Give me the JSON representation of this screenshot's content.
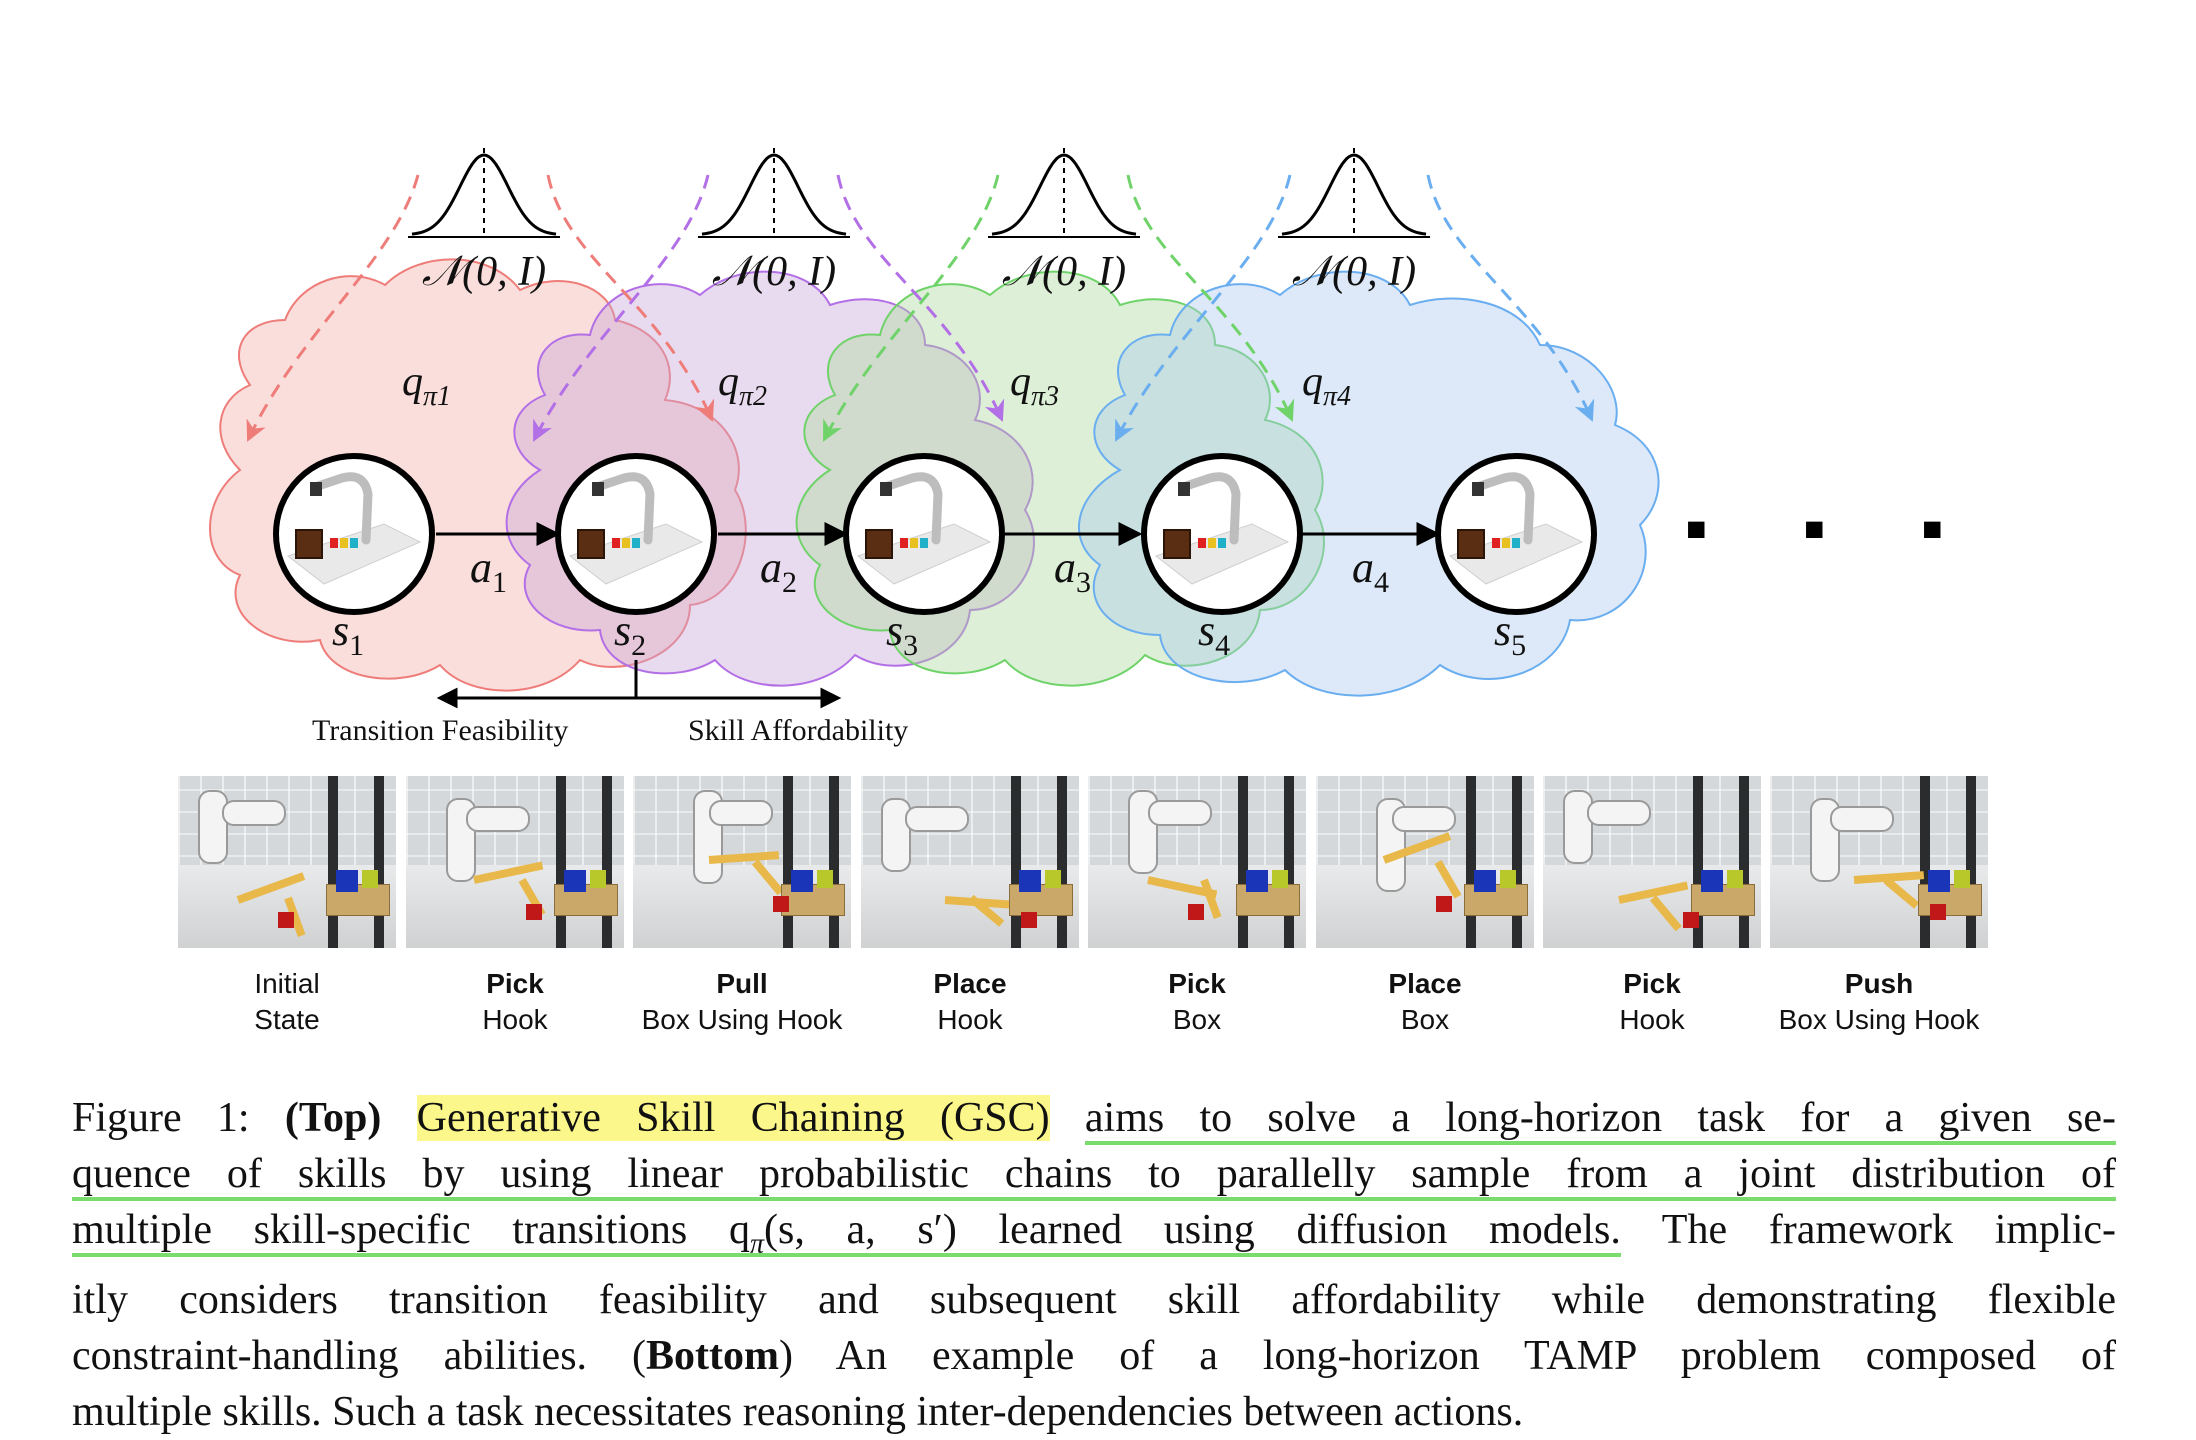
{
  "diagram": {
    "priors": [
      "𝒩(0, I)",
      "𝒩(0, I)",
      "𝒩(0, I)",
      "𝒩(0, I)"
    ],
    "clouds": [
      {
        "label": "q",
        "sub": "π1",
        "color": "#f3a7a4"
      },
      {
        "label": "q",
        "sub": "π2",
        "color": "#c9a6d8"
      },
      {
        "label": "q",
        "sub": "π3",
        "color": "#a9d99a"
      },
      {
        "label": "q",
        "sub": "π4",
        "color": "#a9c9ee"
      }
    ],
    "states": [
      "s1",
      "s2",
      "s3",
      "s4",
      "s5"
    ],
    "state_main": "s",
    "state_subs": [
      "1",
      "2",
      "3",
      "4",
      "5"
    ],
    "action_main": "a",
    "action_subs": [
      "1",
      "2",
      "3",
      "4"
    ],
    "arrow_colors": [
      "#ee7d7a",
      "#b36fe6",
      "#6fd36a",
      "#6aaef0"
    ],
    "ellipsis": "■ ■ ■",
    "transition_label": "Transition Feasibility",
    "skill_label": "Skill Affordability"
  },
  "photos": [
    {
      "top": "Initial",
      "bottom": "State",
      "top_bold": false
    },
    {
      "top": "Pick",
      "bottom": "Hook",
      "top_bold": true
    },
    {
      "top": "Pull",
      "bottom": "Box Using Hook",
      "top_bold": true
    },
    {
      "top": "Place",
      "bottom": "Hook",
      "top_bold": true
    },
    {
      "top": "Pick",
      "bottom": "Box",
      "top_bold": true
    },
    {
      "top": "Place",
      "bottom": "Box",
      "top_bold": true
    },
    {
      "top": "Pick",
      "bottom": "Hook",
      "top_bold": true
    },
    {
      "top": "Push",
      "bottom": "Box Using Hook",
      "top_bold": true
    }
  ],
  "caption": {
    "prefix": "Figure 1: ",
    "top_bold": "(Top)",
    "gsc": "Generative Skill Chaining (GSC)",
    "l1_rest": "aims to solve a long-horizon task for a given se-",
    "l2": "quence of skills by using linear probabilistic chains to parallelly sample from a joint distribution of",
    "l3_ul": "multiple skill-specific transitions q",
    "l3_sub": "π",
    "l3_args": "(s, a, s′) learned using diffusion models.",
    "l3_rest": " The framework implic-",
    "l4": "itly considers transition feasibility and subsequent skill affordability while demonstrating flexible",
    "l5_a": "constraint-handling abilities. (",
    "l5_bold": "Bottom",
    "l5_b": ") An example of a long-horizon TAMP problem composed of",
    "l6": "multiple skills. Such a task necessitates reasoning inter-dependencies between actions."
  }
}
